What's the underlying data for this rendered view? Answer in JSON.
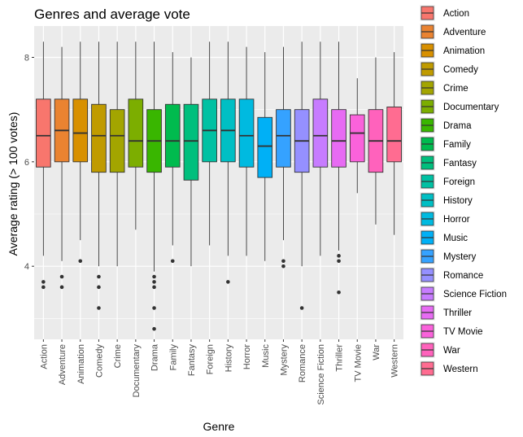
{
  "chart_data": {
    "type": "boxplot",
    "title": "Genres and average vote",
    "xlabel": "Genre",
    "ylabel": "Average rating (> 100 votes)",
    "ylim": [
      2.6,
      8.6
    ],
    "yticks": [
      4,
      6,
      8
    ],
    "grid": true,
    "legend_position": "right",
    "series": [
      {
        "name": "Action",
        "color": "#F8766D",
        "whisker_low": 4.2,
        "q1": 5.9,
        "median": 6.5,
        "q3": 7.2,
        "whisker_high": 8.3,
        "outliers": [
          3.6,
          3.7
        ]
      },
      {
        "name": "Adventure",
        "color": "#EA8331",
        "whisker_low": 4.1,
        "q1": 6.0,
        "median": 6.6,
        "q3": 7.2,
        "whisker_high": 8.2,
        "outliers": [
          3.6,
          3.8
        ]
      },
      {
        "name": "Animation",
        "color": "#D89000",
        "whisker_low": 4.5,
        "q1": 6.0,
        "median": 6.55,
        "q3": 7.2,
        "whisker_high": 8.3,
        "outliers": [
          4.1
        ]
      },
      {
        "name": "Comedy",
        "color": "#C09B00",
        "whisker_low": 4.0,
        "q1": 5.8,
        "median": 6.5,
        "q3": 7.1,
        "whisker_high": 8.3,
        "outliers": [
          3.8,
          3.6,
          3.2
        ]
      },
      {
        "name": "Crime",
        "color": "#A3A500",
        "whisker_low": 4.0,
        "q1": 5.8,
        "median": 6.5,
        "q3": 7.0,
        "whisker_high": 8.3,
        "outliers": []
      },
      {
        "name": "Documentary",
        "color": "#7CAE00",
        "whisker_low": 4.7,
        "q1": 5.9,
        "median": 6.4,
        "q3": 7.2,
        "whisker_high": 8.3,
        "outliers": []
      },
      {
        "name": "Drama",
        "color": "#39B600",
        "whisker_low": 3.9,
        "q1": 5.8,
        "median": 6.4,
        "q3": 7.0,
        "whisker_high": 8.3,
        "outliers": [
          3.8,
          3.7,
          3.6,
          3.2,
          2.8
        ]
      },
      {
        "name": "Family",
        "color": "#00BB4E",
        "whisker_low": 4.4,
        "q1": 5.9,
        "median": 6.4,
        "q3": 7.1,
        "whisker_high": 8.1,
        "outliers": [
          4.1
        ]
      },
      {
        "name": "Fantasy",
        "color": "#00BF7D",
        "whisker_low": 4.0,
        "q1": 5.65,
        "median": 6.4,
        "q3": 7.1,
        "whisker_high": 8.0,
        "outliers": []
      },
      {
        "name": "Foreign",
        "color": "#00C1A3",
        "whisker_low": 4.4,
        "q1": 6.0,
        "median": 6.6,
        "q3": 7.2,
        "whisker_high": 8.3,
        "outliers": []
      },
      {
        "name": "History",
        "color": "#00BFC4",
        "whisker_low": 4.2,
        "q1": 6.0,
        "median": 6.6,
        "q3": 7.2,
        "whisker_high": 8.3,
        "outliers": [
          3.7
        ]
      },
      {
        "name": "Horror",
        "color": "#00BAE0",
        "whisker_low": 4.2,
        "q1": 5.9,
        "median": 6.5,
        "q3": 7.2,
        "whisker_high": 8.2,
        "outliers": []
      },
      {
        "name": "Music",
        "color": "#00B0F6",
        "whisker_low": 4.1,
        "q1": 5.7,
        "median": 6.3,
        "q3": 6.85,
        "whisker_high": 8.1,
        "outliers": []
      },
      {
        "name": "Mystery",
        "color": "#35A2FF",
        "whisker_low": 4.5,
        "q1": 5.9,
        "median": 6.5,
        "q3": 7.0,
        "whisker_high": 8.2,
        "outliers": [
          4.1,
          4.0
        ]
      },
      {
        "name": "Romance",
        "color": "#9590FF",
        "whisker_low": 4.0,
        "q1": 5.8,
        "median": 6.4,
        "q3": 7.0,
        "whisker_high": 8.3,
        "outliers": [
          3.2
        ]
      },
      {
        "name": "Science Fiction",
        "color": "#C77CFF",
        "whisker_low": 4.2,
        "q1": 5.9,
        "median": 6.5,
        "q3": 7.2,
        "whisker_high": 8.3,
        "outliers": []
      },
      {
        "name": "Thriller",
        "color": "#E76BF3",
        "whisker_low": 4.3,
        "q1": 5.9,
        "median": 6.4,
        "q3": 7.0,
        "whisker_high": 8.3,
        "outliers": [
          4.2,
          4.1,
          3.5
        ]
      },
      {
        "name": "TV Movie",
        "color": "#FA62DB",
        "whisker_low": 5.4,
        "q1": 6.0,
        "median": 6.55,
        "q3": 6.9,
        "whisker_high": 7.6,
        "outliers": []
      },
      {
        "name": "War",
        "color": "#FF62BC",
        "whisker_low": 4.8,
        "q1": 5.8,
        "median": 6.4,
        "q3": 7.0,
        "whisker_high": 8.0,
        "outliers": []
      },
      {
        "name": "Western",
        "color": "#FF6C91",
        "whisker_low": 4.6,
        "q1": 6.0,
        "median": 6.4,
        "q3": 7.05,
        "whisker_high": 8.1,
        "outliers": []
      }
    ]
  }
}
